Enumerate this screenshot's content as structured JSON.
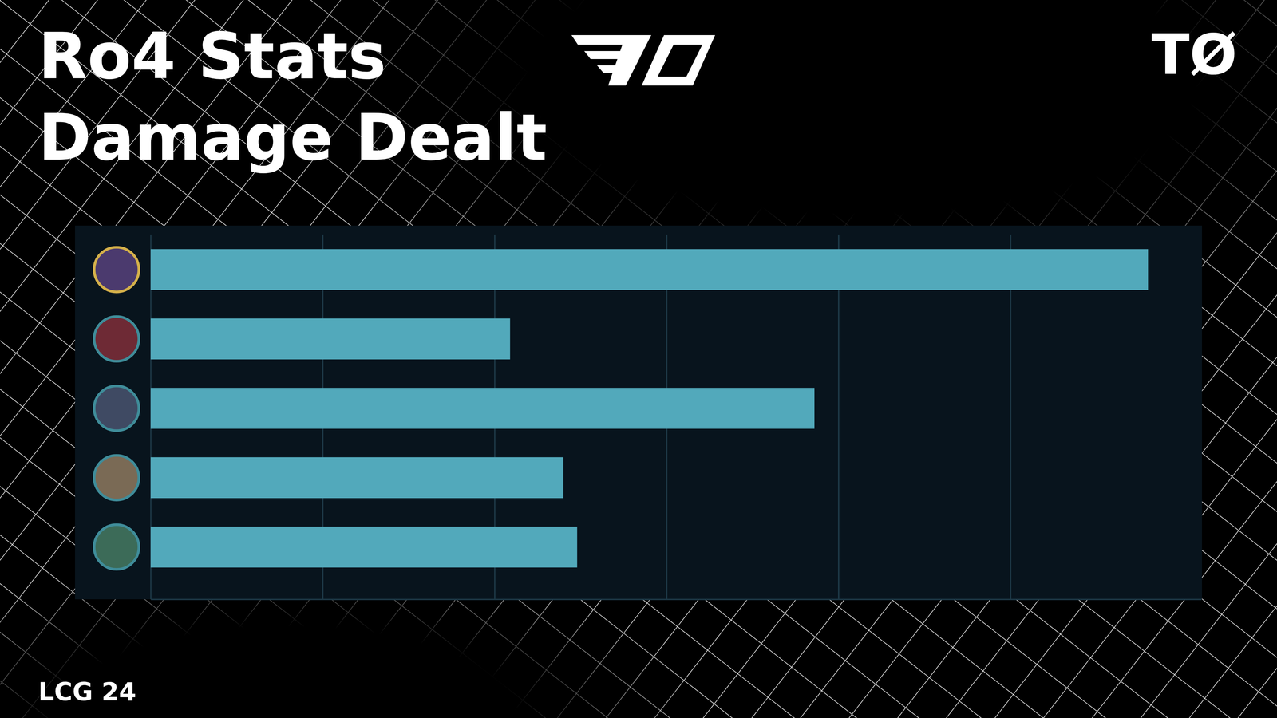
{
  "chart_data": {
    "type": "bar",
    "orientation": "horizontal",
    "title": "Ro4 Stats",
    "subtitle": "Damage Dealt",
    "categories": [
      null,
      null,
      null,
      null,
      null
    ],
    "values": [
      5.8,
      2.09,
      3.86,
      2.4,
      2.48
    ],
    "color": "#52a9bb",
    "xlim": [
      0,
      6.11
    ],
    "xticks": [
      0,
      1,
      2,
      3,
      4,
      5
    ],
    "grid": true,
    "tick_labels": false
  },
  "brand": "TØ",
  "footer": "LCG 24"
}
